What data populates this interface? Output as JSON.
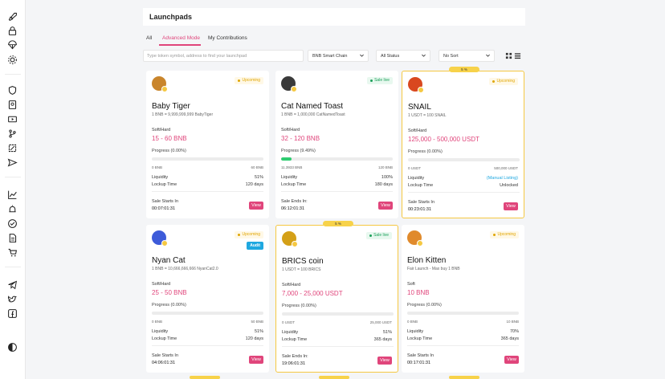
{
  "page": {
    "title": "Launchpads"
  },
  "tabs": [
    {
      "label": "All"
    },
    {
      "label": "Advanced Mode"
    },
    {
      "label": "My Contributions"
    }
  ],
  "filters": {
    "search_placeholder": "Type token symbol, address to find your launchpad",
    "chain": "BNB Smart Chain",
    "status": "All Status",
    "sort": "No Sort"
  },
  "labels": {
    "soft_hard": "Soft/Hard",
    "soft": "Soft",
    "liquidity": "Liquidity",
    "lockup": "Lockup Time",
    "starts": "Sale Starts In",
    "ends": "Sale Ends In:",
    "view": "View",
    "audit": "Audit"
  },
  "colors": {
    "accent": "#e0457b",
    "featured_border": "#f5c842",
    "live": "#1ca05a",
    "upcoming": "#e0a500"
  },
  "cards": [
    {
      "name": "Baby Tiger",
      "rate": "1 BNB = 9,999,999,999 BabyTiger",
      "status": "Upcoming",
      "cap_label": "Soft/Hard",
      "cap": "15 - 60 BNB",
      "progress_label": "Progress (0.00%)",
      "progress": 0,
      "min": "0 BNB",
      "max": "60 BNB",
      "liquidity": "51%",
      "lockup": "120 days",
      "timer_label": "Sale Starts In",
      "timer": "00:07:01:31",
      "featured": false,
      "audit": false,
      "avatar_color": "#c9852c"
    },
    {
      "name": "Cat Named Toast",
      "rate": "1 BNB = 1,000,000 CatNamedToast",
      "status": "Sale live",
      "cap_label": "Soft/Hard",
      "cap": "32 - 120 BNB",
      "progress_label": "Progress (9.49%)",
      "progress": 9.49,
      "min": "11.3933 BNB",
      "max": "120 BNB",
      "liquidity": "100%",
      "lockup": "180 days",
      "timer_label": "Sale Ends In:",
      "timer": "06:12:01:31",
      "featured": false,
      "audit": false,
      "avatar_color": "#3a3a3a"
    },
    {
      "name": "SNAIL",
      "rate": "1 USDT = 100 SNAIL",
      "status": "Upcoming",
      "cap_label": "Soft/Hard",
      "cap": "125,000 - 500,000 USDT",
      "progress_label": "Progress (0.00%)",
      "progress": 0,
      "min": "0 USDT",
      "max": "500,000 USDT",
      "liquidity": "(Manual Listing)",
      "lockup": "Unlocked",
      "timer_label": "Sale Starts In",
      "timer": "00:23:01:31",
      "featured": true,
      "featured_tag": "5 %",
      "audit": false,
      "avatar_color": "#d9481f"
    },
    {
      "name": "Nyan Cat",
      "rate": "1 BNB = 10,666,666,666 NyanCat2.0",
      "status": "Upcoming",
      "cap_label": "Soft/Hard",
      "cap": "25 - 50 BNB",
      "progress_label": "Progress (0.00%)",
      "progress": 0,
      "min": "0 BNB",
      "max": "50 BNB",
      "liquidity": "51%",
      "lockup": "120 days",
      "timer_label": "Sale Starts In",
      "timer": "04:06:01:31",
      "featured": false,
      "audit": true,
      "avatar_color": "#3d5bd9"
    },
    {
      "name": "BRICS coin",
      "rate": "1 USDT = 100 BRICS",
      "status": "Sale live",
      "cap_label": "Soft/Hard",
      "cap": "7,000 - 25,000 USDT",
      "progress_label": "Progress (0.00%)",
      "progress": 0,
      "min": "0 USDT",
      "max": "25,000 USDT",
      "liquidity": "51%",
      "lockup": "365 days",
      "timer_label": "Sale Ends In:",
      "timer": "19:06:01:31",
      "featured": true,
      "featured_tag": "5 %",
      "audit": false,
      "avatar_color": "#d4a017"
    },
    {
      "name": "Elon Kitten",
      "rate": "Fair Launch - Max buy 1 BNB",
      "status": "Upcoming",
      "cap_label": "Soft",
      "cap": "10 BNB",
      "progress_label": "Progress (0.00%)",
      "progress": 0,
      "min": "0 BNB",
      "max": "10 BNB",
      "liquidity": "70%",
      "lockup": "365 days",
      "timer_label": "Sale Starts In",
      "timer": "00:17:01:31",
      "featured": false,
      "audit": false,
      "avatar_color": "#e08a2c"
    }
  ]
}
